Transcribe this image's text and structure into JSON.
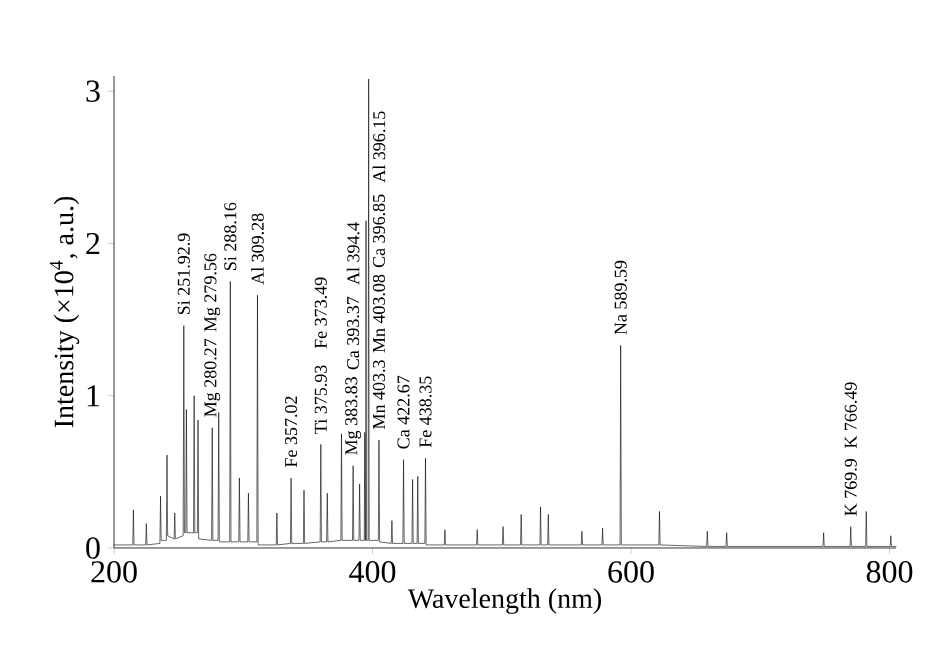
{
  "chart_data": {
    "type": "line",
    "xlabel": "Wavelength (nm)",
    "ylabel": "Intensity (×10$^{4}$, a.u.)",
    "xlim": [
      200,
      805
    ],
    "ylim": [
      0,
      3.1
    ],
    "xticks": [
      200,
      400,
      600,
      800
    ],
    "yticks": [
      0,
      1,
      2,
      3
    ],
    "x": [
      200,
      214.5,
      215,
      215.5,
      224.5,
      225,
      225.5,
      235.5,
      236,
      236.5,
      240.5,
      241,
      241.5,
      246.5,
      247,
      247.5,
      253.5,
      254,
      254.5,
      255.5,
      256,
      256.5,
      261.5,
      262,
      262.5,
      264.5,
      265,
      265.5,
      275.5,
      276,
      276.5,
      280.5,
      281,
      281.5,
      289.5,
      290,
      290.5,
      296.5,
      297,
      297.5,
      303.5,
      304,
      304.5,
      310.5,
      311,
      311.5,
      325.5,
      326,
      326.5,
      336.5,
      337,
      337.5,
      346.5,
      347,
      347.5,
      359.5,
      360,
      360.5,
      364.5,
      365,
      365.5,
      375.5,
      376,
      376.5,
      384.5,
      385,
      385.5,
      389.5,
      390,
      390.5,
      393.6,
      394,
      394.4,
      394.6,
      395,
      395.4,
      396.6,
      397,
      397.4,
      404.5,
      405,
      405.5,
      414.5,
      415,
      415.5,
      423.5,
      424,
      424.5,
      430.5,
      431,
      431.5,
      434.5,
      435,
      435.5,
      440.5,
      441,
      441.5,
      455.5,
      456,
      456.5,
      480.5,
      481,
      481.5,
      500.5,
      501,
      501.5,
      514.5,
      515,
      515.5,
      529.5,
      530,
      530.5,
      535.5,
      536,
      536.5,
      561.5,
      562,
      562.5,
      577.5,
      578,
      578.5,
      591.5,
      592,
      592.5,
      621.5,
      622,
      622.5,
      658.5,
      659,
      659.5,
      673.5,
      674,
      674.5,
      748.5,
      749,
      749.5,
      769.5,
      770,
      770.5,
      781.5,
      782,
      782.5,
      800.5,
      801,
      801.5,
      805
    ],
    "series": [
      {
        "color": "#000000",
        "values": [
          0.02,
          0.02,
          0.25,
          0.02,
          0.02,
          0.16,
          0.02,
          0.03,
          0.34,
          0.05,
          0.05,
          0.61,
          0.08,
          0.06,
          0.23,
          0.06,
          0.08,
          1.46,
          0.1,
          0.1,
          0.91,
          0.1,
          0.1,
          1.0,
          0.1,
          0.1,
          0.84,
          0.06,
          0.05,
          0.79,
          0.05,
          0.05,
          0.89,
          0.04,
          0.04,
          1.75,
          0.04,
          0.04,
          0.46,
          0.04,
          0.04,
          0.36,
          0.04,
          0.04,
          1.66,
          0.02,
          0.02,
          0.23,
          0.02,
          0.03,
          0.46,
          0.03,
          0.03,
          0.38,
          0.03,
          0.04,
          0.68,
          0.04,
          0.04,
          0.36,
          0.04,
          0.05,
          0.75,
          0.05,
          0.05,
          0.54,
          0.05,
          0.05,
          0.42,
          0.05,
          0.05,
          0.76,
          0.05,
          0.05,
          2.15,
          0.05,
          0.05,
          3.08,
          0.05,
          0.05,
          0.71,
          0.04,
          0.03,
          0.18,
          0.03,
          0.03,
          0.58,
          0.03,
          0.03,
          0.45,
          0.03,
          0.03,
          0.47,
          0.03,
          0.03,
          0.59,
          0.02,
          0.02,
          0.12,
          0.02,
          0.02,
          0.12,
          0.02,
          0.02,
          0.14,
          0.02,
          0.02,
          0.22,
          0.02,
          0.02,
          0.27,
          0.02,
          0.02,
          0.22,
          0.02,
          0.02,
          0.11,
          0.02,
          0.02,
          0.13,
          0.02,
          0.02,
          1.33,
          0.02,
          0.02,
          0.24,
          0.02,
          0.01,
          0.11,
          0.01,
          0.01,
          0.1,
          0.01,
          0.01,
          0.1,
          0.01,
          0.01,
          0.14,
          0.01,
          0.01,
          0.24,
          0.01,
          0.01,
          0.08,
          0.01,
          0.01
        ]
      }
    ],
    "annotations": [
      {
        "text": "Si 251.92.9",
        "x": 254,
        "y": 1.46
      },
      {
        "text": "Mg 280.27",
        "x": 276,
        "y": 0.79
      },
      "Mg 279.56",
      {
        "text": "Si 288.16",
        "x": 290,
        "y": 1.75
      },
      {
        "text": "Al 309.28",
        "x": 311,
        "y": 1.66
      },
      {
        "text": "Fe 357.02",
        "x": 337,
        "y": 0.46
      },
      {
        "text": "Ti 375.93",
        "x": 360,
        "y": 0.68
      },
      "Fe 373.49",
      {
        "text": "Mg 383.83",
        "x": 385,
        "y": 0.54
      },
      "Ca 393.37",
      "Al 394.4",
      {
        "text": "Mn 403.3",
        "x": 405,
        "y": 0.71
      },
      "Mn 403.08",
      "Ca 396.85",
      "Al 396.15",
      {
        "text": "Ca 422.67",
        "x": 424,
        "y": 0.58
      },
      {
        "text": "Fe 438.35",
        "x": 441,
        "y": 0.59
      },
      {
        "text": "Na 589.59",
        "x": 592,
        "y": 1.33
      },
      {
        "text": "K 769.9",
        "x": 770,
        "y": 0.14
      },
      "K 766.49"
    ]
  }
}
